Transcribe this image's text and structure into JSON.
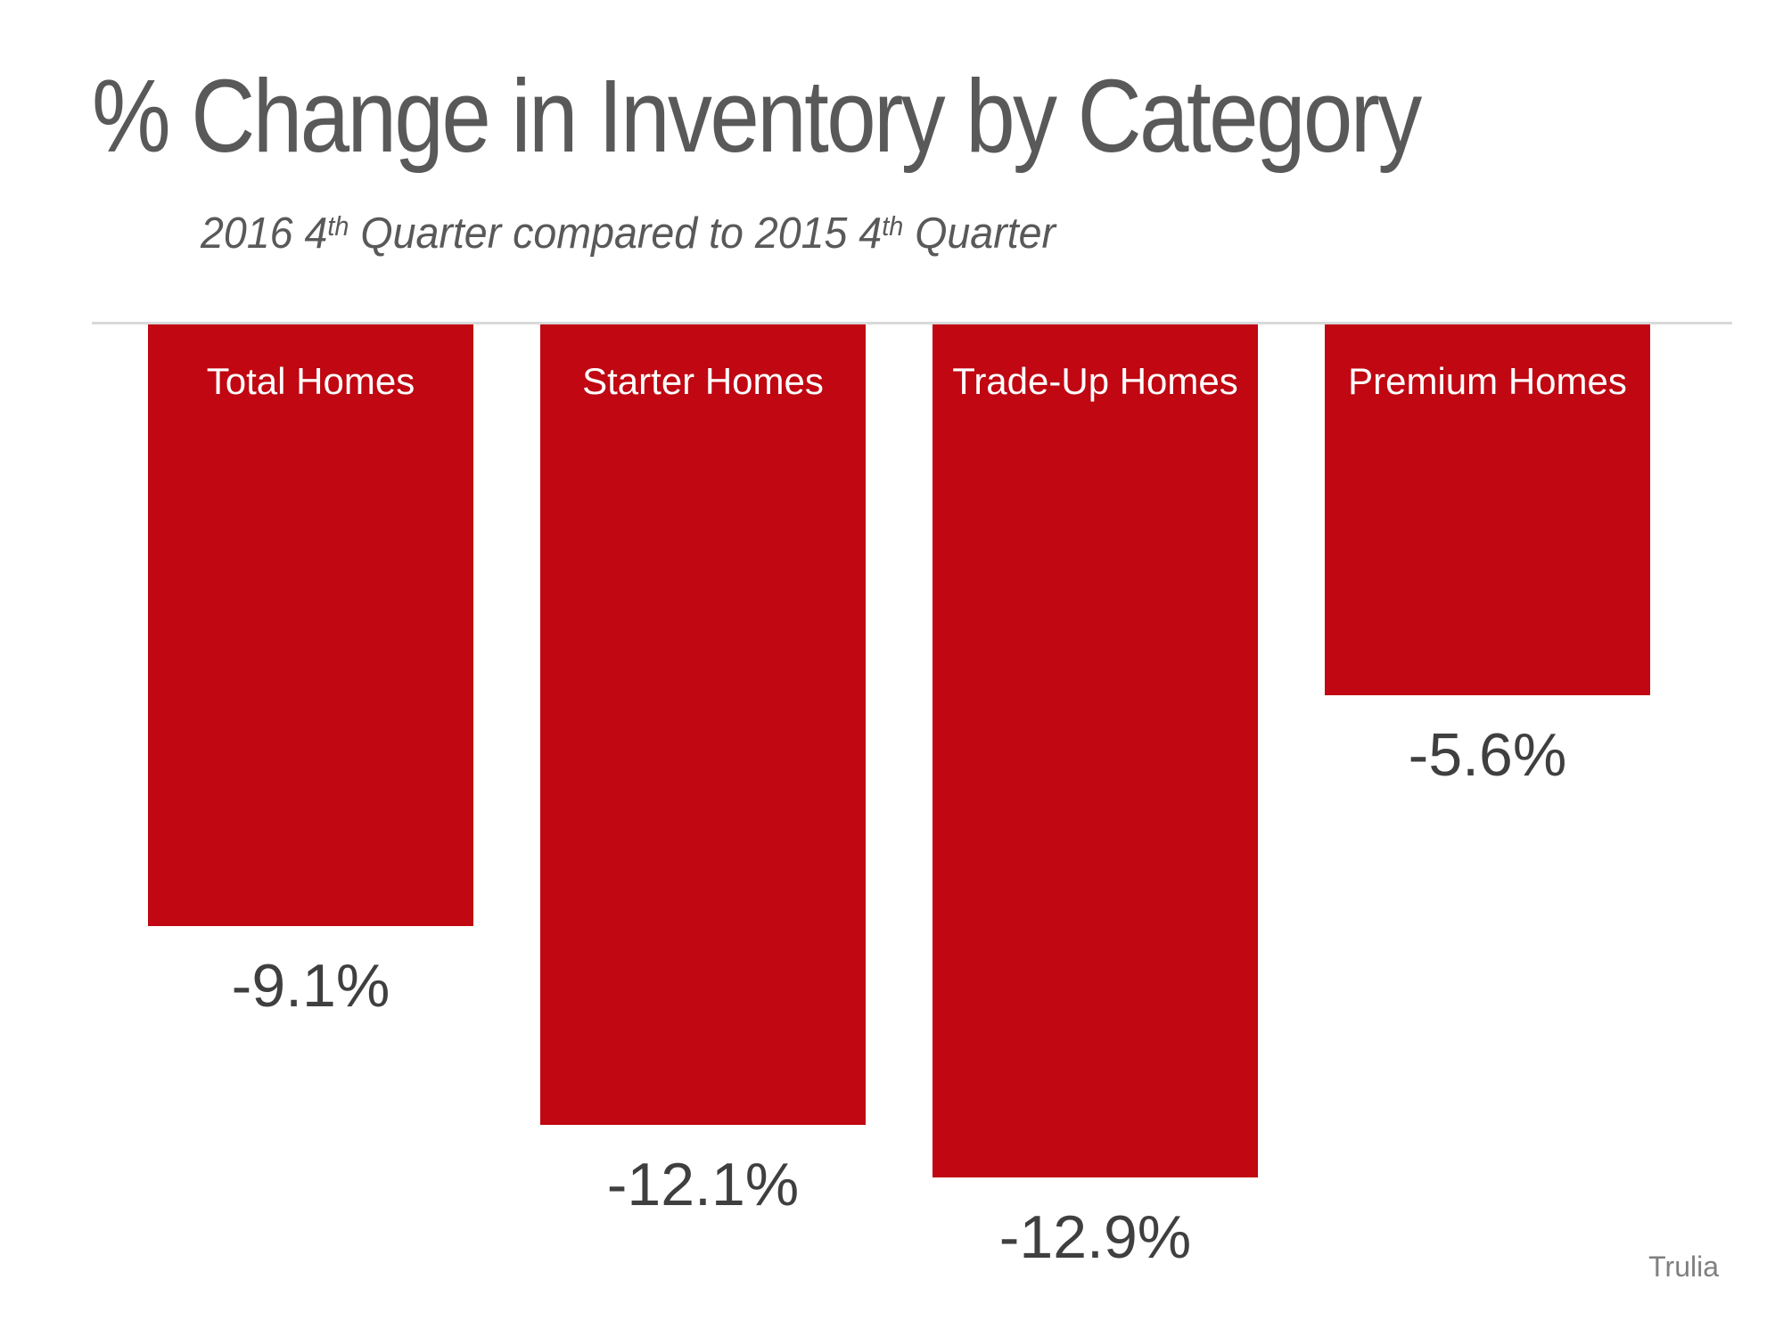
{
  "chart_data": {
    "type": "bar",
    "title": "% Change in Inventory by Category",
    "subtitle_parts": [
      {
        "text": "2016 4",
        "sup": false
      },
      {
        "text": "th",
        "sup": true
      },
      {
        "text": " Quarter compared to 2015 4",
        "sup": false
      },
      {
        "text": "th",
        "sup": true
      },
      {
        "text": " Quarter",
        "sup": false
      }
    ],
    "categories": [
      "Total Homes",
      "Starter Homes",
      "Trade-Up Homes",
      "Premium Homes"
    ],
    "values": [
      -9.1,
      -12.1,
      -12.9,
      -5.6
    ],
    "value_labels": [
      "-9.1%",
      "-12.1%",
      "-12.9%",
      "-5.6%"
    ],
    "xlabel": "",
    "ylabel": "",
    "ylim": [
      -13.5,
      0
    ],
    "orientation": "vertical",
    "grid": false,
    "legend": false,
    "baseline_visible": true,
    "colors": {
      "bar": "#c00712",
      "title_text": "#595959",
      "category_label_text": "#ffffff",
      "value_label_text": "#3f3f3f",
      "baseline": "#d9d9d9"
    }
  },
  "attribution": {
    "label": "Trulia"
  }
}
